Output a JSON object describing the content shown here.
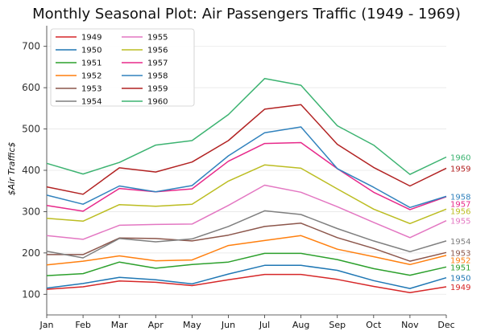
{
  "chart_data": {
    "type": "line",
    "title": "Monthly Seasonal Plot: Air Passengers Traffic (1949 - 1969)",
    "xlabel": "",
    "ylabel": "$Air Traffic$",
    "categories": [
      "Jan",
      "Feb",
      "Mar",
      "Apr",
      "May",
      "Jun",
      "Jul",
      "Aug",
      "Sep",
      "Oct",
      "Nov",
      "Dec"
    ],
    "ylim": [
      50,
      750
    ],
    "yticks": [
      100,
      200,
      300,
      400,
      500,
      600,
      700
    ],
    "grid": "horizontal",
    "legend_position": "top-left",
    "legend_columns": 2,
    "series": [
      {
        "name": "1949",
        "color": "#d62728",
        "values": [
          112,
          118,
          132,
          129,
          121,
          135,
          148,
          148,
          136,
          119,
          104,
          118
        ]
      },
      {
        "name": "1950",
        "color": "#1f77b4",
        "values": [
          115,
          126,
          141,
          135,
          125,
          149,
          170,
          170,
          158,
          133,
          114,
          140
        ]
      },
      {
        "name": "1951",
        "color": "#2ca02c",
        "values": [
          145,
          150,
          178,
          163,
          172,
          178,
          199,
          199,
          184,
          162,
          146,
          166
        ]
      },
      {
        "name": "1952",
        "color": "#ff7f0e",
        "values": [
          171,
          180,
          193,
          181,
          183,
          218,
          230,
          242,
          209,
          191,
          172,
          194
        ]
      },
      {
        "name": "1953",
        "color": "#8c564b",
        "values": [
          196,
          196,
          236,
          235,
          229,
          243,
          264,
          272,
          237,
          211,
          180,
          201
        ]
      },
      {
        "name": "1954",
        "color": "#7f7f7f",
        "values": [
          204,
          188,
          235,
          227,
          234,
          264,
          302,
          293,
          259,
          229,
          203,
          229
        ]
      },
      {
        "name": "1955",
        "color": "#e377c2",
        "values": [
          242,
          233,
          267,
          269,
          270,
          315,
          364,
          347,
          312,
          274,
          237,
          278
        ]
      },
      {
        "name": "1956",
        "color": "#bcbd22",
        "values": [
          284,
          277,
          317,
          313,
          318,
          374,
          413,
          405,
          355,
          306,
          271,
          306
        ]
      },
      {
        "name": "1957",
        "color": "#e7298a",
        "values": [
          315,
          301,
          356,
          348,
          355,
          422,
          465,
          467,
          404,
          347,
          305,
          336
        ]
      },
      {
        "name": "1958",
        "color": "#3182bd",
        "values": [
          340,
          318,
          362,
          348,
          363,
          435,
          491,
          505,
          404,
          359,
          310,
          337
        ]
      },
      {
        "name": "1959",
        "color": "#b22222",
        "values": [
          360,
          342,
          406,
          396,
          420,
          472,
          548,
          559,
          463,
          407,
          362,
          405
        ]
      },
      {
        "name": "1960",
        "color": "#3cb371",
        "values": [
          417,
          391,
          419,
          461,
          472,
          535,
          622,
          606,
          508,
          461,
          390,
          432
        ]
      }
    ]
  }
}
